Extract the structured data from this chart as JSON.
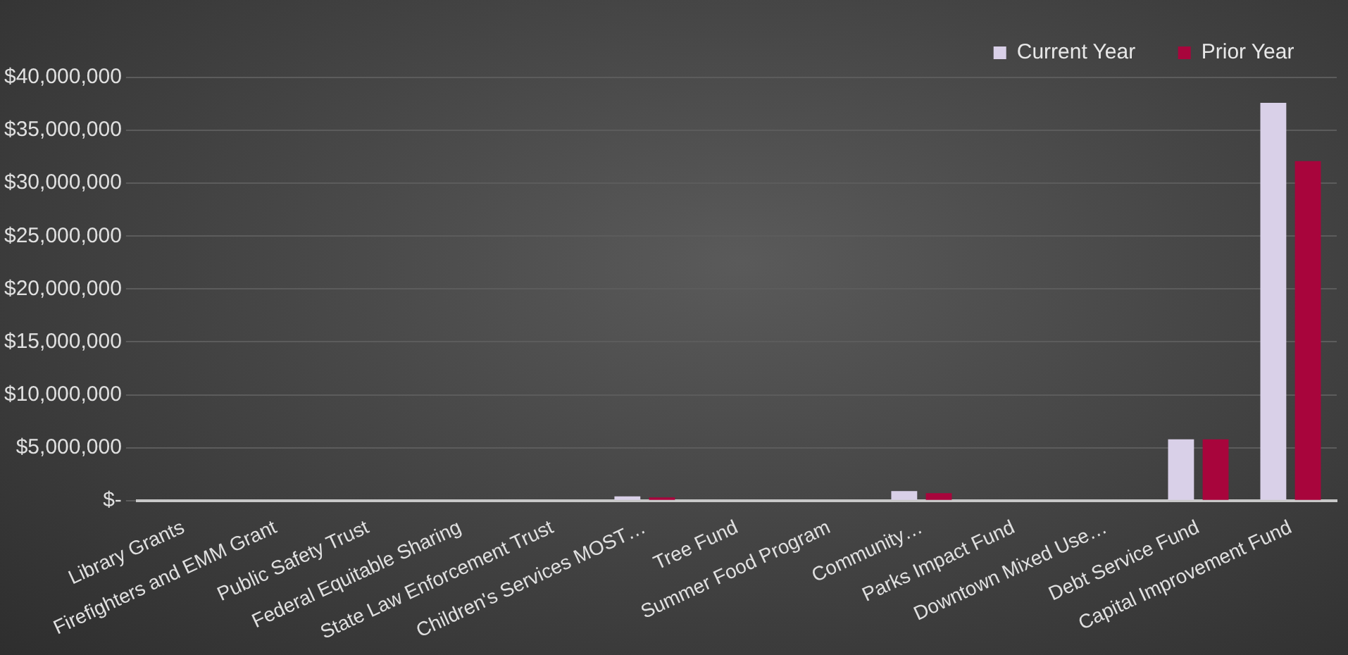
{
  "chart_data": {
    "type": "bar",
    "categories": [
      "Library Grants",
      "Firefighters and EMM Grant",
      "Public Safety Trust",
      "Federal Equitable Sharing",
      "State Law Enforcement Trust",
      "Children's Services MOST…",
      "Tree Fund",
      "Summer Food Program",
      "Community…",
      "Parks Impact Fund",
      "Downtown Mixed Use…",
      "Debt Service Fund",
      "Capital Improvement Fund"
    ],
    "series": [
      {
        "name": "Current Year",
        "color": "#d9d0e8",
        "values": [
          0,
          0,
          0,
          0,
          0,
          400000,
          0,
          0,
          900000,
          0,
          0,
          5800000,
          37600000
        ]
      },
      {
        "name": "Prior Year",
        "color": "#a8053c",
        "values": [
          0,
          0,
          0,
          0,
          0,
          300000,
          0,
          0,
          700000,
          0,
          0,
          5800000,
          32100000
        ]
      }
    ],
    "ylim": [
      0,
      40000000
    ],
    "yticks": [
      {
        "value": 0,
        "label": "$-"
      },
      {
        "value": 5000000,
        "label": "$5,000,000"
      },
      {
        "value": 10000000,
        "label": "$10,000,000"
      },
      {
        "value": 15000000,
        "label": "$15,000,000"
      },
      {
        "value": 20000000,
        "label": "$20,000,000"
      },
      {
        "value": 25000000,
        "label": "$25,000,000"
      },
      {
        "value": 30000000,
        "label": "$30,000,000"
      },
      {
        "value": 35000000,
        "label": "$35,000,000"
      },
      {
        "value": 40000000,
        "label": "$40,000,000"
      }
    ],
    "grid": "y",
    "legend": "top right"
  }
}
